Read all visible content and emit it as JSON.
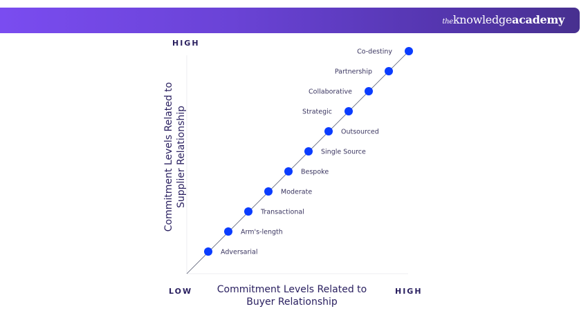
{
  "brand": {
    "prefix": "the",
    "name1": "knowledge",
    "name2": "academy",
    "color": "#6a43d6"
  },
  "diagram": {
    "y_axis": {
      "high": "HIGH",
      "title_line1": "Commitment Levels Related to",
      "title_line2": "Supplier Relationship"
    },
    "x_axis": {
      "low": "LOW",
      "high": "HIGH",
      "title_line1": "Commitment Levels Related to",
      "title_line2": "Buyer Relationship"
    },
    "dot_color": "#0a3cff",
    "levels": [
      {
        "label": "Adversarial",
        "side": "right"
      },
      {
        "label": "Arm's-length",
        "side": "right"
      },
      {
        "label": "Transactional",
        "side": "right"
      },
      {
        "label": "Moderate",
        "side": "right"
      },
      {
        "label": "Bespoke",
        "side": "right"
      },
      {
        "label": "Single Source",
        "side": "right"
      },
      {
        "label": "Outsourced",
        "side": "right"
      },
      {
        "label": "Strategic",
        "side": "left"
      },
      {
        "label": "Collaborative",
        "side": "left"
      },
      {
        "label": "Partnership",
        "side": "left"
      },
      {
        "label": "Co-destiny",
        "side": "left"
      }
    ]
  }
}
